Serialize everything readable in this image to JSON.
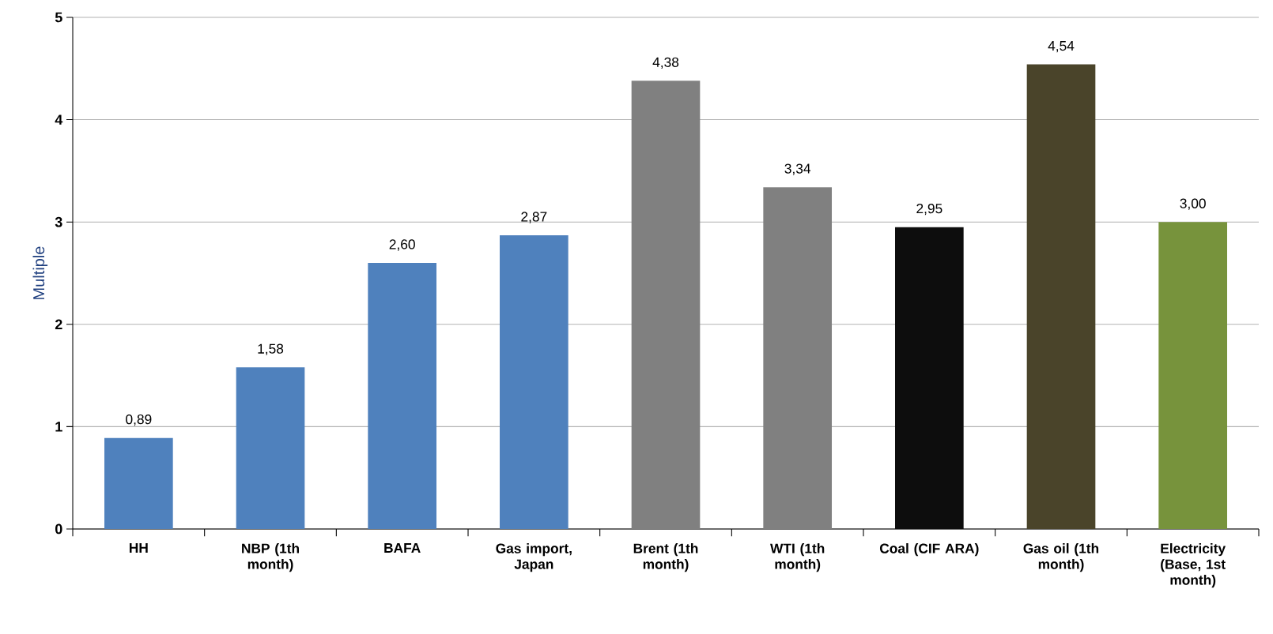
{
  "chart_data": {
    "type": "bar",
    "ylabel": "Multiple",
    "categories": [
      "HH",
      "NBP (1th month)",
      "BAFA",
      "Gas import, Japan",
      "Brent (1th month)",
      "WTI (1th month)",
      "Coal (CIF ARA)",
      "Gas oil (1th month)",
      "Electricity (Base, 1st month)"
    ],
    "values": [
      0.89,
      1.58,
      2.6,
      2.87,
      4.38,
      3.34,
      2.95,
      4.54,
      3.0
    ],
    "value_labels": [
      "0,89",
      "1,58",
      "2,60",
      "2,87",
      "4,38",
      "3,34",
      "2,95",
      "4,54",
      "3,00"
    ],
    "colors": [
      "#4f81bd",
      "#4f81bd",
      "#4f81bd",
      "#4f81bd",
      "#808080",
      "#808080",
      "#0d0d0d",
      "#4a442a",
      "#77933c"
    ],
    "ylim": [
      0,
      5
    ],
    "yticks": [
      0,
      1,
      2,
      3,
      4,
      5
    ],
    "grid": "y"
  }
}
